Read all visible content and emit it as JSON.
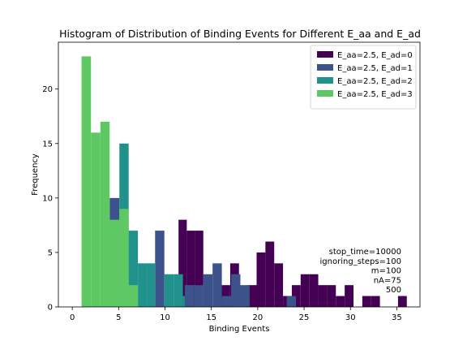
{
  "chart_data": {
    "type": "bar",
    "title": "Histogram of Distribution of Binding Events for Different E_aa and E_ad",
    "xlabel": "Binding Events",
    "ylabel": "Frequency",
    "xlim": [
      -1.5,
      37.5
    ],
    "ylim": [
      0,
      24.3
    ],
    "xticks": [
      0,
      5,
      10,
      15,
      20,
      25,
      30,
      35
    ],
    "yticks": [
      0,
      5,
      10,
      15,
      20
    ],
    "legend_position": "top-right",
    "series": [
      {
        "name": "E_aa=2.5, E_ad=0",
        "color": "#440154",
        "bins": [
          {
            "x0": 11.46,
            "x1": 12.35,
            "count": 8
          },
          {
            "x0": 12.35,
            "x1": 13.24,
            "count": 7
          },
          {
            "x0": 13.24,
            "x1": 14.13,
            "count": 7
          },
          {
            "x0": 16.08,
            "x1": 17.03,
            "count": 2
          },
          {
            "x0": 17.03,
            "x1": 17.98,
            "count": 4
          },
          {
            "x0": 18.93,
            "x1": 19.88,
            "count": 2
          },
          {
            "x0": 19.88,
            "x1": 20.83,
            "count": 5
          },
          {
            "x0": 20.83,
            "x1": 21.78,
            "count": 6
          },
          {
            "x0": 21.78,
            "x1": 22.73,
            "count": 4
          },
          {
            "x0": 22.73,
            "x1": 23.68,
            "count": 1
          },
          {
            "x0": 23.68,
            "x1": 24.63,
            "count": 2
          },
          {
            "x0": 24.63,
            "x1": 25.58,
            "count": 3
          },
          {
            "x0": 25.58,
            "x1": 26.53,
            "count": 3
          },
          {
            "x0": 26.53,
            "x1": 27.48,
            "count": 2
          },
          {
            "x0": 27.48,
            "x1": 28.43,
            "count": 2
          },
          {
            "x0": 28.43,
            "x1": 29.38,
            "count": 1
          },
          {
            "x0": 29.38,
            "x1": 30.33,
            "count": 2
          },
          {
            "x0": 31.28,
            "x1": 32.23,
            "count": 1
          },
          {
            "x0": 32.23,
            "x1": 33.18,
            "count": 1
          },
          {
            "x0": 35.13,
            "x1": 36.08,
            "count": 1
          }
        ]
      },
      {
        "name": "E_aa=2.5, E_ad=1",
        "color": "#3b528b",
        "bins": [
          {
            "x0": 4.03,
            "x1": 5.08,
            "count": 10
          },
          {
            "x0": 8.93,
            "x1": 9.93,
            "count": 7
          },
          {
            "x0": 12.13,
            "x1": 13.13,
            "count": 2
          },
          {
            "x0": 13.13,
            "x1": 14.13,
            "count": 2
          },
          {
            "x0": 14.13,
            "x1": 15.13,
            "count": 3
          },
          {
            "x0": 15.13,
            "x1": 16.13,
            "count": 4
          },
          {
            "x0": 16.13,
            "x1": 17.13,
            "count": 1
          },
          {
            "x0": 17.13,
            "x1": 18.13,
            "count": 3
          },
          {
            "x0": 18.13,
            "x1": 19.13,
            "count": 2
          },
          {
            "x0": 23.13,
            "x1": 24.13,
            "count": 1
          }
        ]
      },
      {
        "name": "E_aa=2.5, E_ad=2",
        "color": "#21918c",
        "bins": [
          {
            "x0": 5.08,
            "x1": 6.08,
            "count": 15
          },
          {
            "x0": 6.08,
            "x1": 7.08,
            "count": 7
          },
          {
            "x0": 7.08,
            "x1": 8.08,
            "count": 4
          },
          {
            "x0": 8.08,
            "x1": 8.93,
            "count": 4
          },
          {
            "x0": 9.93,
            "x1": 10.93,
            "count": 3
          },
          {
            "x0": 10.93,
            "x1": 11.93,
            "count": 3
          },
          {
            "x0": 11.93,
            "x1": 12.13,
            "count": 1
          }
        ]
      },
      {
        "name": "E_aa=2.5, E_ad=3",
        "color": "#5ec962",
        "bins": [
          {
            "x0": 1.0,
            "x1": 2.02,
            "count": 23
          },
          {
            "x0": 2.02,
            "x1": 3.03,
            "count": 16
          },
          {
            "x0": 3.03,
            "x1": 4.03,
            "count": 17
          },
          {
            "x0": 4.03,
            "x1": 5.08,
            "count": 8
          },
          {
            "x0": 5.08,
            "x1": 6.08,
            "count": 9
          },
          {
            "x0": 6.08,
            "x1": 7.08,
            "count": 2
          }
        ]
      }
    ]
  },
  "annotation_lines": [
    "stop_time=10000",
    "ignoring_steps=100",
    "m=100",
    "nA=75",
    "500"
  ]
}
